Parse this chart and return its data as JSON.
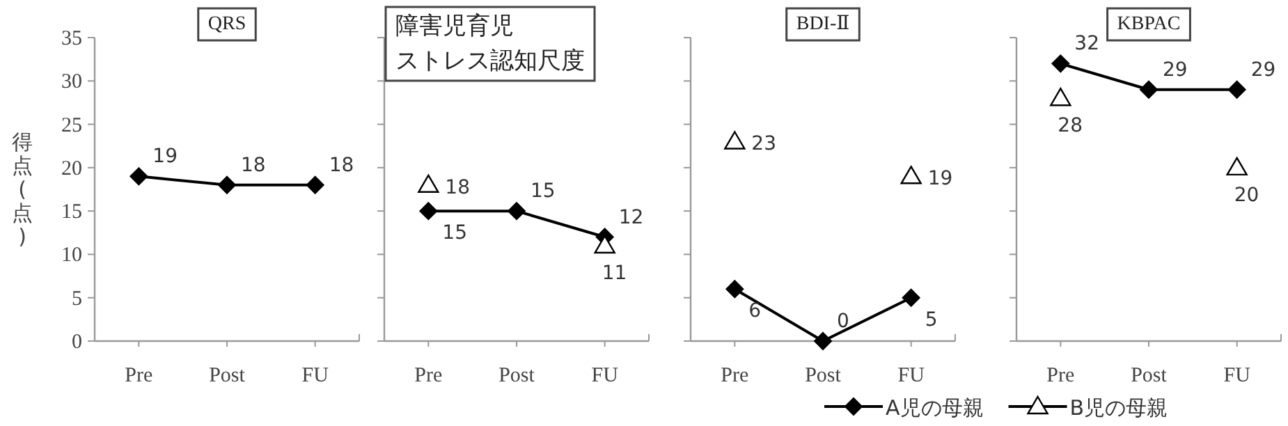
{
  "chart_data": [
    {
      "type": "line",
      "title": "QRS",
      "ylabel": "得点(点)",
      "categories": [
        "Pre",
        "Post",
        "FU"
      ],
      "ylim": [
        0,
        35
      ],
      "yticks": [
        0,
        5,
        10,
        15,
        20,
        25,
        30,
        35
      ],
      "data_labels": true,
      "series": [
        {
          "type": "line",
          "marker": "diamond",
          "color": "#000000",
          "values": [
            19,
            18,
            18
          ]
        }
      ]
    },
    {
      "type": "line",
      "title": "障害児育児ストレス認知尺度",
      "categories": [
        "Pre",
        "Post",
        "FU"
      ],
      "ylim": [
        0,
        35
      ],
      "yticks": [
        {
          "value": 0,
          "label": null
        },
        {
          "value": 5,
          "label": null
        },
        {
          "value": 10,
          "label": null
        },
        {
          "value": 15,
          "label": null
        },
        {
          "value": 20,
          "label": null
        },
        {
          "value": 25,
          "label": null
        },
        {
          "value": 30,
          "label": null
        },
        {
          "value": 35,
          "label": null
        }
      ],
      "tick_labels": "x",
      "data_labels": true,
      "series": [
        {
          "type": "line",
          "marker": "diamond",
          "color": "#000000",
          "values": [
            15,
            15,
            12
          ]
        },
        {
          "type": "scatter",
          "marker": "triangle",
          "color": "#000000",
          "values": [
            18,
            null,
            11
          ]
        }
      ]
    },
    {
      "type": "line",
      "title": "BDI-Ⅱ",
      "categories": [
        "Pre",
        "Post",
        "FU"
      ],
      "ylim": [
        0,
        35
      ],
      "yticks": [
        {
          "value": 0,
          "label": null
        },
        {
          "value": 5,
          "label": null
        },
        {
          "value": 10,
          "label": null
        },
        {
          "value": 15,
          "label": null
        },
        {
          "value": 20,
          "label": null
        },
        {
          "value": 25,
          "label": null
        },
        {
          "value": 30,
          "label": null
        },
        {
          "value": 35,
          "label": null
        }
      ],
      "tick_labels": "x",
      "data_labels": true,
      "series": [
        {
          "type": "line",
          "marker": "diamond",
          "color": "#000000",
          "values": [
            6,
            0,
            5
          ]
        },
        {
          "type": "scatter",
          "marker": "triangle",
          "color": "#000000",
          "values": [
            23,
            null,
            19
          ]
        }
      ]
    },
    {
      "type": "line",
      "title": "KBPAC",
      "categories": [
        "Pre",
        "Post",
        "FU"
      ],
      "ylim": [
        0,
        35
      ],
      "yticks": [
        {
          "value": 0,
          "label": null
        },
        {
          "value": 5,
          "label": null
        },
        {
          "value": 10,
          "label": null
        },
        {
          "value": 15,
          "label": null
        },
        {
          "value": 20,
          "label": null
        },
        {
          "value": 25,
          "label": null
        },
        {
          "value": 30,
          "label": null
        },
        {
          "value": 35,
          "label": null
        }
      ],
      "tick_labels": "x",
      "data_labels": true,
      "legend": "bottom",
      "series": [
        {
          "name": "A児の母親",
          "type": "line",
          "marker": "diamond",
          "color": "#000000",
          "values": [
            32,
            29,
            29
          ]
        },
        {
          "name": "B児の母親",
          "type": "scatter",
          "marker": "triangle",
          "color": "#000000",
          "values": [
            28,
            null,
            20
          ]
        }
      ]
    }
  ]
}
